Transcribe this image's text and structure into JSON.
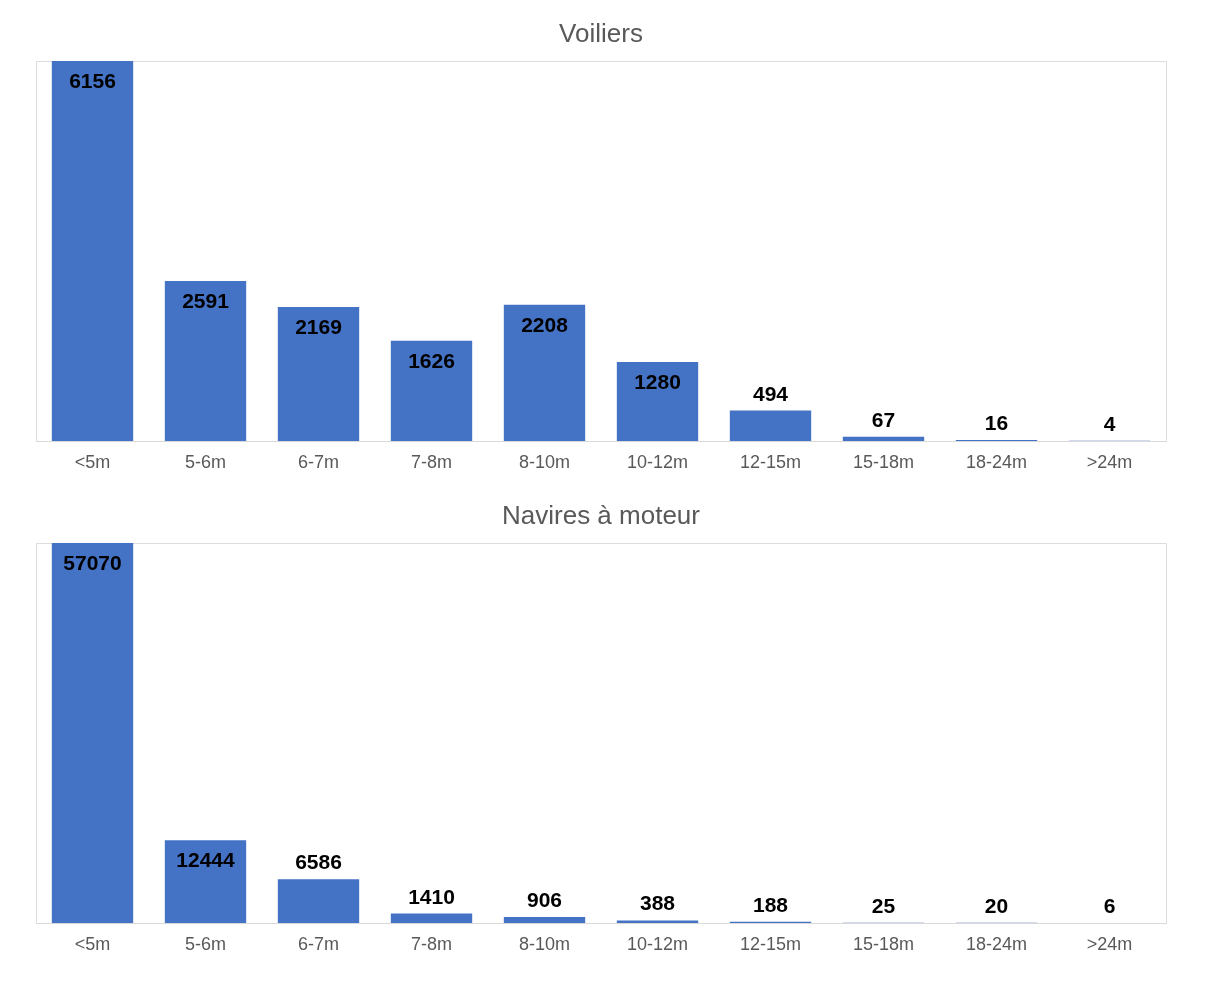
{
  "chart_data": [
    {
      "type": "bar",
      "title": "Voiliers",
      "categories": [
        "<5m",
        "5-6m",
        "6-7m",
        "7-8m",
        "8-10m",
        "10-12m",
        "12-15m",
        "15-18m",
        "18-24m",
        ">24m"
      ],
      "values": [
        6156,
        2591,
        2169,
        1626,
        2208,
        1280,
        494,
        67,
        16,
        4
      ],
      "color": "#4472c4",
      "data_labels": true
    },
    {
      "type": "bar",
      "title": "Navires à moteur",
      "categories": [
        "<5m",
        "5-6m",
        "6-7m",
        "7-8m",
        "8-10m",
        "10-12m",
        "12-15m",
        "15-18m",
        "18-24m",
        ">24m"
      ],
      "values": [
        57070,
        12444,
        6586,
        1410,
        906,
        388,
        188,
        25,
        20,
        6
      ],
      "color": "#4472c4",
      "data_labels": true
    }
  ]
}
